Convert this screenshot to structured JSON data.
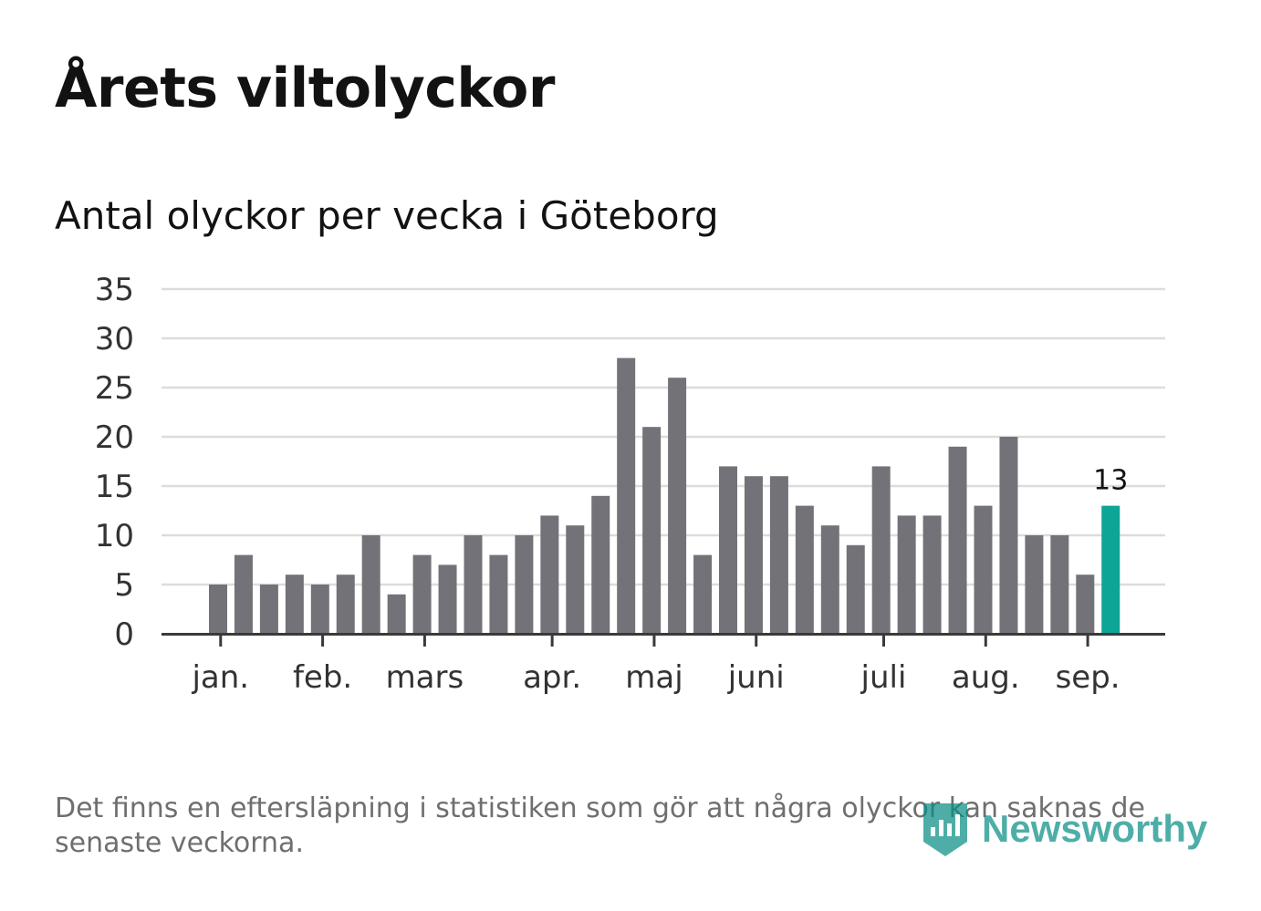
{
  "header": {
    "title": "Årets viltolyckor",
    "subtitle": "Antal olyckor per vecka i Göteborg"
  },
  "footer": {
    "note": "Det finns en eftersläpning i statistiken som gör att några olyckor kan saknas de senaste veckorna.",
    "brand": "Newsworthy",
    "brand_icon": "newsworthy-logo-icon"
  },
  "colors": {
    "bar": "#737278",
    "highlight": "#0ca596",
    "grid": "#dcdcdc",
    "axis": "#3a3a3a",
    "text": "#333333",
    "brand": "#0b8f86"
  },
  "chart_data": {
    "type": "bar",
    "title": "Antal olyckor per vecka i Göteborg",
    "xlabel": "",
    "ylabel": "",
    "ylim": [
      0,
      35
    ],
    "yticks": [
      0,
      5,
      10,
      15,
      20,
      25,
      30,
      35
    ],
    "grid": true,
    "values": [
      5,
      8,
      5,
      6,
      5,
      6,
      10,
      4,
      8,
      7,
      10,
      8,
      10,
      12,
      11,
      14,
      28,
      21,
      26,
      8,
      17,
      16,
      16,
      13,
      11,
      9,
      17,
      12,
      12,
      19,
      13,
      20,
      10,
      10,
      6,
      13
    ],
    "highlight_last": true,
    "highlight_label": "13",
    "month_labels": [
      {
        "label": "jan.",
        "position": 1.3
      },
      {
        "label": "feb.",
        "position": 5.3
      },
      {
        "label": "mars",
        "position": 9.3
      },
      {
        "label": "apr.",
        "position": 14.3
      },
      {
        "label": "maj",
        "position": 18.3
      },
      {
        "label": "juni",
        "position": 22.3
      },
      {
        "label": "juli",
        "position": 27.3
      },
      {
        "label": "aug.",
        "position": 31.3
      },
      {
        "label": "sep.",
        "position": 35.3
      }
    ]
  }
}
